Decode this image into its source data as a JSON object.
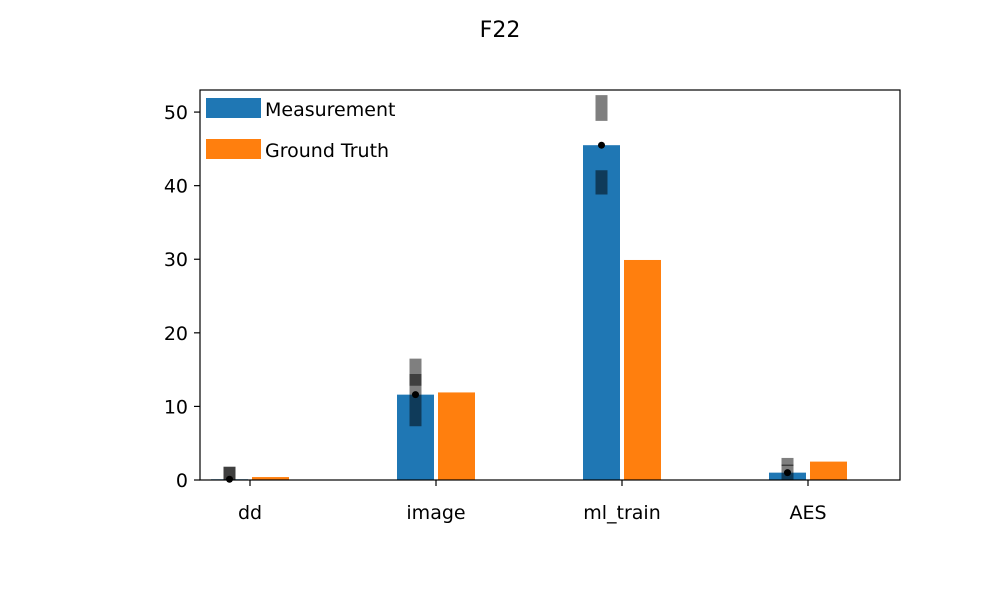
{
  "chart_data": {
    "type": "bar",
    "title": "F22",
    "xlabel": "",
    "ylabel": "",
    "categories": [
      "dd",
      "image",
      "ml_train",
      "AES"
    ],
    "ylim": [
      0,
      53
    ],
    "yticks": [
      0,
      10,
      20,
      30,
      40,
      50
    ],
    "legend_position": "top-left",
    "grid": false,
    "series": [
      {
        "name": "Measurement",
        "color": "#1f77b4",
        "values": [
          0.1,
          11.6,
          45.5,
          1.0
        ],
        "error_bars": [
          {
            "inner": [
              0.0,
              1.8
            ],
            "outer": [
              0.0,
              1.8
            ],
            "median": 0.1
          },
          {
            "inner": [
              7.3,
              14.4
            ],
            "outer": [
              12.8,
              16.5
            ],
            "median": 11.6
          },
          {
            "inner": [
              38.8,
              42.1
            ],
            "outer": [
              48.8,
              52.3
            ],
            "median": 45.5
          },
          {
            "inner": [
              0.0,
              2.1
            ],
            "outer": [
              1.9,
              3.0
            ],
            "median": 1.0
          }
        ]
      },
      {
        "name": "Ground Truth",
        "color": "#ff7f0e",
        "values": [
          0.4,
          11.9,
          29.9,
          2.5
        ]
      }
    ]
  }
}
